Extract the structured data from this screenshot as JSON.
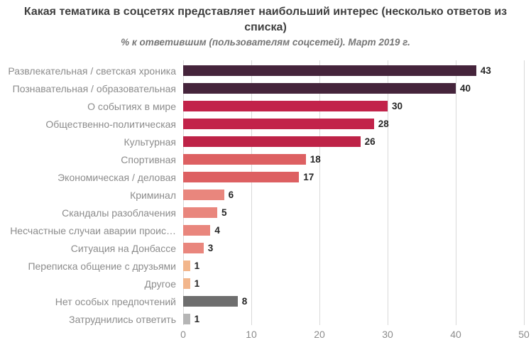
{
  "title": "Какая тематика в соцсетях представляет наибольший интерес (несколько ответов из списка)",
  "subtitle": "% к ответившим (пользователям соцсетей). Март 2019 г.",
  "chart_data": {
    "type": "bar",
    "orientation": "horizontal",
    "title": "Какая тематика в соцсетях представляет наибольший интерес (несколько ответов из списка)",
    "subtitle": "% к ответившим (пользователям соцсетей). Март 2019 г.",
    "categories": [
      "Развлекательная / светская хроника",
      "Познавательная / образовательная",
      "О событиях в мире",
      "Общественно-политическая",
      "Культурная",
      "Спортивная",
      "Экономическая / деловая",
      "Криминал",
      "Скандалы разоблачения",
      "Несчастные случаи аварии проис…",
      "Ситуация на Донбассе",
      "Переписка общение с друзьями",
      "Другое",
      "Нет особых предпочтений",
      "Затруднились ответить"
    ],
    "values": [
      43,
      40,
      30,
      28,
      26,
      18,
      17,
      6,
      5,
      4,
      3,
      1,
      1,
      8,
      1
    ],
    "bar_colors": [
      "#45243B",
      "#45243B",
      "#C2234A",
      "#C2234A",
      "#BE2347",
      "#DD6062",
      "#DD6062",
      "#E9867D",
      "#E9867D",
      "#E9867D",
      "#E9867D",
      "#F2B68C",
      "#F2B68C",
      "#6E6E6E",
      "#B5B5B5"
    ],
    "xlim": [
      0,
      50
    ],
    "x_ticks": [
      0,
      10,
      20,
      30,
      40,
      50
    ],
    "x_tick_labels": [
      "0",
      "10",
      "20",
      "30",
      "40",
      "50"
    ],
    "grid": "vertical",
    "legend": "none",
    "data_labels": "end-of-bar",
    "label_color": "#8c8c8c",
    "gridline_color": "#d9d9d9",
    "value_label_color": "#262626"
  }
}
